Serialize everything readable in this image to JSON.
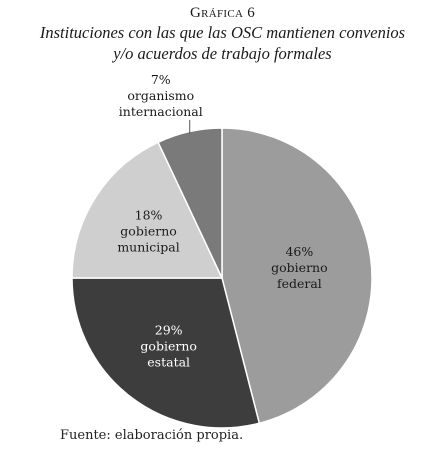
{
  "header": {
    "kicker": "Gráfica 6",
    "title_line1": "Instituciones con las que las OSC mantienen convenios",
    "title_line2": "y/o acuerdos de trabajo formales"
  },
  "chart_data": {
    "type": "pie",
    "title": "Instituciones con las que las OSC mantienen convenios y/o acuerdos de trabajo formales",
    "start_angle_deg": 0,
    "direction": "clockwise",
    "slices": [
      {
        "pct_label": "46%",
        "value": 46,
        "label_lines": [
          "gobierno",
          "federal"
        ],
        "color": "#9c9c9c",
        "text_color": "#1a1a1a"
      },
      {
        "pct_label": "29%",
        "value": 29,
        "label_lines": [
          "gobierno",
          "estatal"
        ],
        "color": "#3d3d3d",
        "text_color": "#ffffff"
      },
      {
        "pct_label": "18%",
        "value": 18,
        "label_lines": [
          "gobierno",
          "municipal"
        ],
        "color": "#cfcfcf",
        "text_color": "#1a1a1a"
      },
      {
        "pct_label": "7%",
        "value": 7,
        "label_lines": [
          "organismo",
          "internacional"
        ],
        "color": "#7a7a7a",
        "text_color": "#1a1a1a",
        "label_outside": true
      }
    ]
  },
  "footer": {
    "source": "Fuente: elaboración propia."
  }
}
